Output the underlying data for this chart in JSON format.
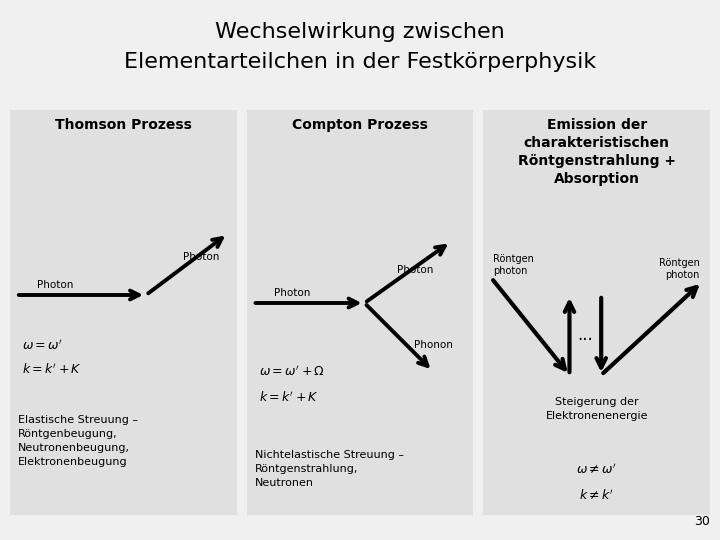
{
  "title_line1": "Wechselwirkung zwischen",
  "title_line2": "Elementarteilchen in der Festkörperphysik",
  "title_fontsize": 16,
  "bg_color": "#f0f0f0",
  "panel_color": "#e0e0e0",
  "panel1_title": "Thomson Prozess",
  "panel2_title": "Compton Prozess",
  "panel3_title": "Emission der\ncharakteristischen\nRöntgenstrahlung +\nAbsorption",
  "panel1_eq1": "$\\omega = \\omega'$",
  "panel1_eq2": "$k = k' + K$",
  "panel2_eq1": "$\\omega = \\omega' + \\Omega$",
  "panel2_eq2": "$k = k' + K$",
  "panel3_eq1": "$\\omega \\neq \\omega'$",
  "panel3_eq2": "$k \\neq k'$",
  "panel1_desc": "Elastische Streuung –\nRöntgenbeugung,\nNeutronenbeugung,\nElektronenbeugung",
  "panel2_desc": "Nichtelastische Streuung –\nRöntgenstrahlung,\nNeutronen",
  "panel3_desc": "Steigerung der\nElektronenenergie",
  "page_number": "30",
  "arrow_color": "#000000",
  "text_color": "#000000",
  "panel_title_fontsize": 10,
  "panel_text_fontsize": 8,
  "eq_fontsize": 9
}
